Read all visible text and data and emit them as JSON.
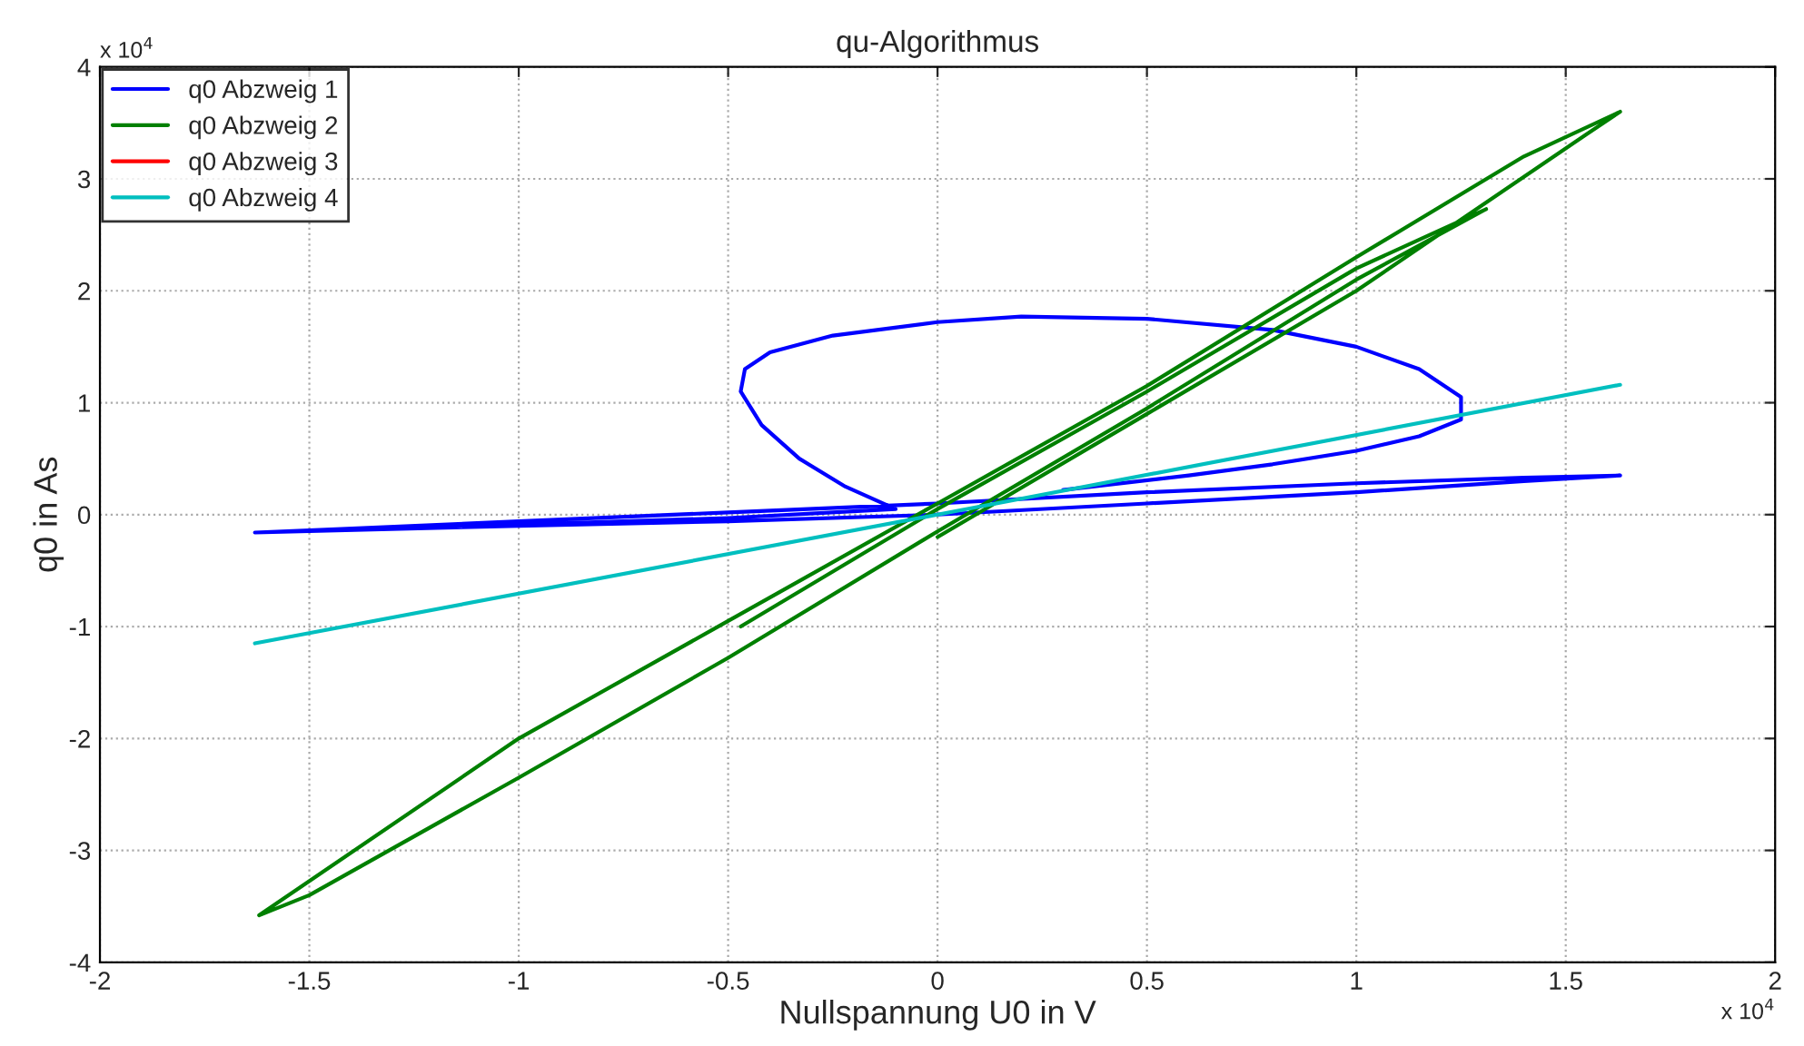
{
  "chart_data": {
    "type": "line",
    "title": "qu-Algorithmus",
    "xlabel": "Nullspannung U0 in V",
    "ylabel": "q0 in As",
    "annotations": [
      "x 10$^{4}$",
      "x 10$^{4}$"
    ],
    "xlim": [
      -2,
      2
    ],
    "xticks": [
      -2,
      -1.5,
      -1,
      -0.5,
      0,
      0.5,
      1,
      1.5,
      2
    ],
    "ylim": [
      -4,
      4
    ],
    "yticks": [
      -4,
      -3,
      -2,
      -1,
      0,
      1,
      2,
      3,
      4
    ],
    "grid": true,
    "legend": "top left",
    "marker": "none",
    "line_style": "solid",
    "series": [
      {
        "name": "q0 Abzweig 1",
        "color": "#0000ff",
        "x": [
          -1.63,
          -1.0,
          -0.5,
          0.0,
          0.5,
          1.0,
          1.4,
          1.63,
          1.4,
          1.0,
          0.5,
          0.0,
          -0.5,
          -1.0,
          -1.5,
          -1.63,
          -1.0,
          -0.5,
          -0.1,
          -0.22,
          -0.33,
          -0.42,
          -0.47,
          -0.46,
          -0.4,
          -0.25,
          0.0,
          0.2,
          0.5,
          0.8,
          1.0,
          1.15,
          1.25,
          1.25,
          1.15,
          1.0,
          0.8,
          0.6,
          0.3
        ],
        "values": [
          -0.16,
          -0.1,
          -0.06,
          0.0,
          0.1,
          0.2,
          0.3,
          0.35,
          0.33,
          0.28,
          0.2,
          0.1,
          0.02,
          -0.06,
          -0.14,
          -0.16,
          -0.09,
          -0.03,
          0.05,
          0.25,
          0.5,
          0.8,
          1.1,
          1.3,
          1.45,
          1.6,
          1.72,
          1.77,
          1.75,
          1.65,
          1.5,
          1.3,
          1.05,
          0.85,
          0.7,
          0.57,
          0.45,
          0.35,
          0.22
        ]
      },
      {
        "name": "q0 Abzweig 2",
        "color": "#008000",
        "x": [
          -0.47,
          0.0,
          0.5,
          1.0,
          1.31,
          1.0,
          0.5,
          0.0,
          -0.5,
          -1.0,
          -1.5,
          -1.62,
          -1.0,
          -0.5,
          0.0,
          0.5,
          1.0,
          1.4,
          1.63,
          1.55,
          1.0,
          0.5,
          0.0
        ],
        "values": [
          -1.0,
          0.05,
          1.1,
          2.2,
          2.73,
          2.1,
          0.95,
          -0.15,
          -1.28,
          -2.35,
          -3.4,
          -3.58,
          -2.0,
          -0.95,
          0.1,
          1.15,
          2.3,
          3.2,
          3.6,
          3.4,
          2.0,
          0.9,
          -0.2
        ]
      },
      {
        "name": "q0 Abzweig 3",
        "color": "#ff0000"
      },
      {
        "name": "q0 Abzweig 4",
        "color": "#00bfbf",
        "x": [
          -1.63,
          0.0,
          1.63
        ],
        "values": [
          -1.15,
          0.0,
          1.16
        ]
      }
    ]
  }
}
